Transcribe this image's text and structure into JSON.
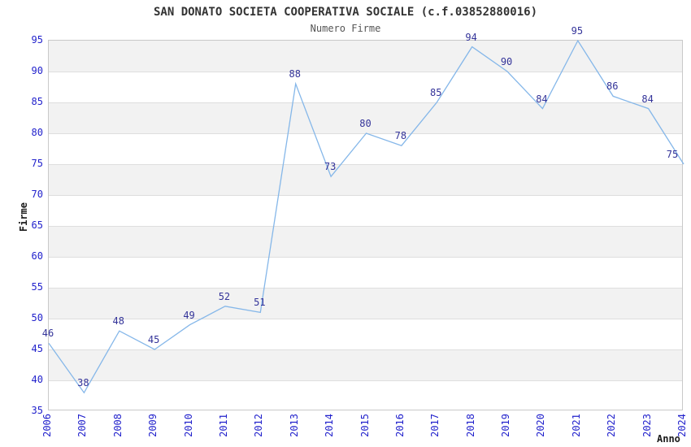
{
  "header": {
    "title": "SAN DONATO SOCIETA COOPERATIVA SOCIALE (c.f.03852880016)",
    "subtitle": "Numero Firme"
  },
  "chart_data": {
    "type": "line",
    "title": "SAN DONATO SOCIETA COOPERATIVA SOCIALE (c.f.03852880016)",
    "subtitle": "Numero Firme",
    "xlabel": "Anno",
    "ylabel": "Firme",
    "categories": [
      "2006",
      "2007",
      "2008",
      "2009",
      "2010",
      "2011",
      "2012",
      "2013",
      "2014",
      "2015",
      "2016",
      "2017",
      "2018",
      "2019",
      "2020",
      "2021",
      "2022",
      "2023",
      "2024"
    ],
    "values": [
      46,
      38,
      48,
      45,
      49,
      52,
      51,
      88,
      73,
      80,
      78,
      85,
      94,
      90,
      84,
      95,
      86,
      84,
      75
    ],
    "ylim": [
      35,
      95
    ],
    "ytick_step": 5,
    "yticks": [
      95,
      90,
      85,
      80,
      75,
      70,
      65,
      60,
      55,
      50,
      45,
      40,
      35
    ],
    "grid": "horizontal-bands",
    "legend": null,
    "colors": {
      "line": "#85b7e9",
      "tick_labels": "#2222cc",
      "point_labels": "#333399",
      "title": "#333333",
      "subtitle": "#555555",
      "axis_titles": "#1a1a1a",
      "band_gray": "#f2f2f2",
      "band_white": "#ffffff",
      "gridline": "#dedede",
      "plot_border": "#c9c9c9"
    }
  }
}
